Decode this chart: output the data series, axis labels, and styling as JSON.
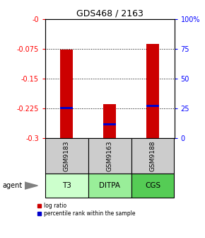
{
  "title": "GDS468 / 2163",
  "samples": [
    "GSM9183",
    "GSM9163",
    "GSM9188"
  ],
  "agents": [
    "T3",
    "DITPA",
    "CGS"
  ],
  "ylim_left": [
    -0.3,
    0.0
  ],
  "ylim_right": [
    0,
    100
  ],
  "yticks_left": [
    -0.3,
    -0.225,
    -0.15,
    -0.075,
    0.0
  ],
  "yticks_right": [
    0,
    25,
    50,
    75,
    100
  ],
  "ytick_labels_left": [
    "-0.3",
    "-0.225",
    "-0.15",
    "-0.075",
    "-0"
  ],
  "ytick_labels_right": [
    "0",
    "25",
    "50",
    "75",
    "100%"
  ],
  "bar_bottom": -0.3,
  "bar_tops": [
    -0.077,
    -0.215,
    -0.063
  ],
  "percentile_values": [
    -0.224,
    -0.265,
    -0.219
  ],
  "bar_color": "#cc0000",
  "percentile_color": "#0000cc",
  "agent_colors": [
    "#ccffcc",
    "#99ee99",
    "#55cc55"
  ],
  "sample_bg_color": "#cccccc",
  "bar_width": 0.3,
  "grid_yticks": [
    -0.075,
    -0.15,
    -0.225
  ]
}
